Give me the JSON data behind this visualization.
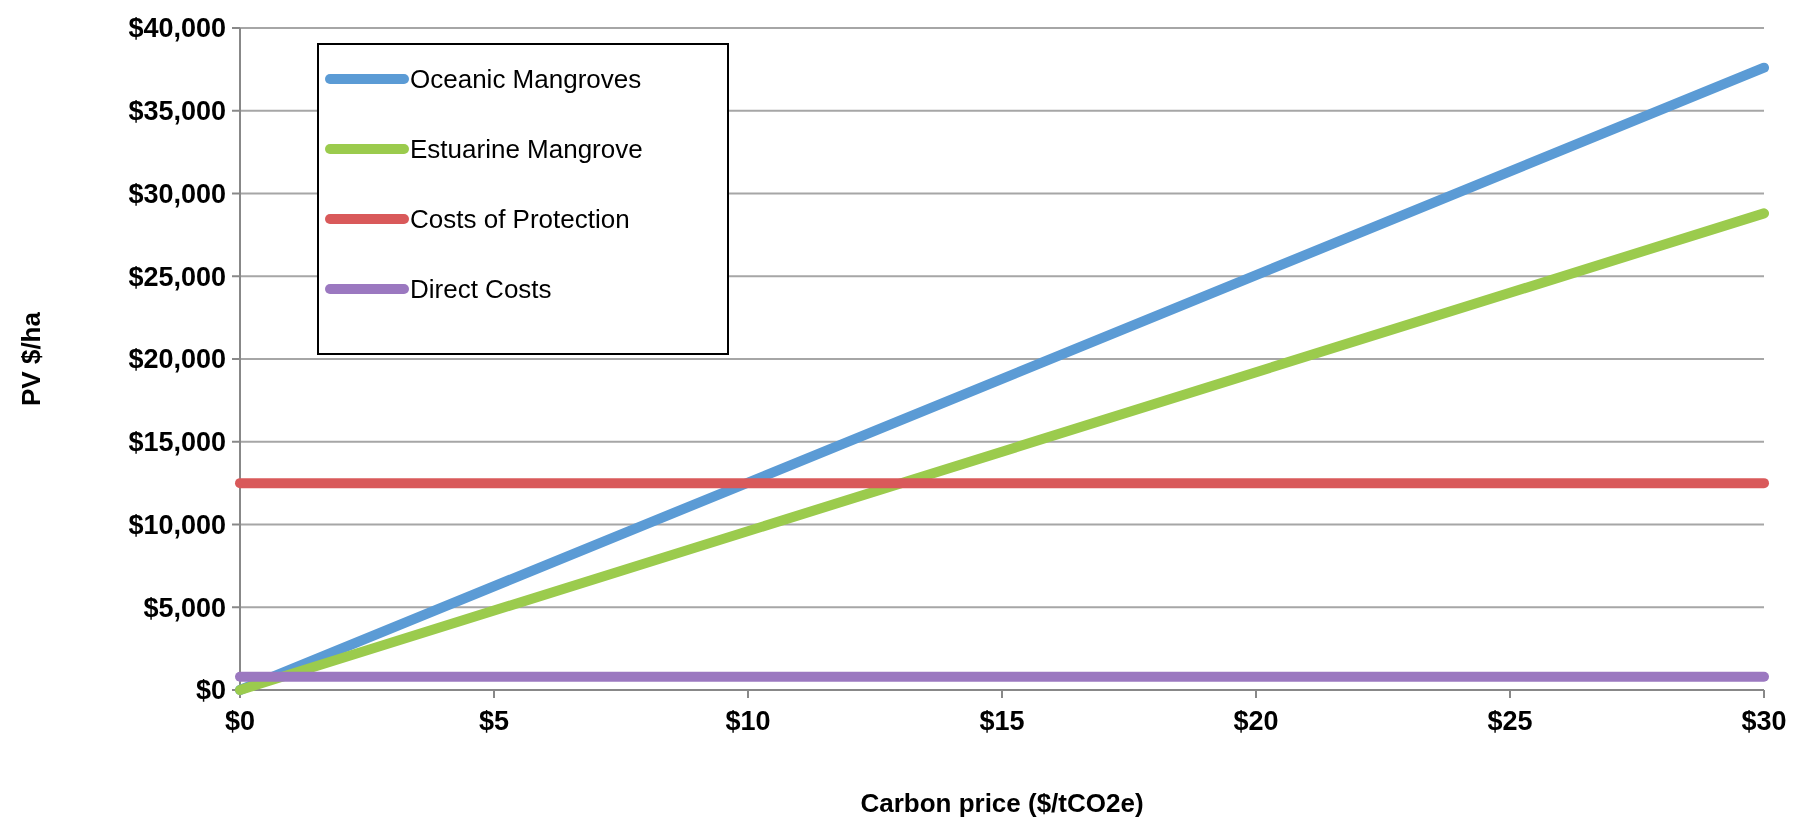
{
  "chart_data": {
    "type": "line",
    "xlabel": "Carbon price ($/tCO2e)",
    "ylabel": "PV $/ha",
    "x": [
      0,
      30
    ],
    "series": [
      {
        "name": "Oceanic Mangroves",
        "color": "#5b9bd5",
        "values": [
          0,
          37600
        ]
      },
      {
        "name": "Estuarine Mangrove",
        "color": "#9bcb4d",
        "values": [
          0,
          28800
        ]
      },
      {
        "name": "Costs of Protection",
        "color": "#d9595a",
        "values": [
          12500,
          12500
        ]
      },
      {
        "name": "Direct Costs",
        "color": "#9b78c0",
        "values": [
          800,
          800
        ]
      }
    ],
    "xlim": [
      0,
      30
    ],
    "xticks": [
      {
        "value": 0,
        "label": "$0"
      },
      {
        "value": 5,
        "label": "$5"
      },
      {
        "value": 10,
        "label": "$10"
      },
      {
        "value": 15,
        "label": "$15"
      },
      {
        "value": 20,
        "label": "$20"
      },
      {
        "value": 25,
        "label": "$25"
      },
      {
        "value": 30,
        "label": "$30"
      }
    ],
    "ylim": [
      0,
      40000
    ],
    "yticks": [
      {
        "value": 0,
        "label": "$0"
      },
      {
        "value": 5000,
        "label": "$5,000"
      },
      {
        "value": 10000,
        "label": "$10,000"
      },
      {
        "value": 15000,
        "label": "$15,000"
      },
      {
        "value": 20000,
        "label": "$20,000"
      },
      {
        "value": 25000,
        "label": "$25,000"
      },
      {
        "value": 30000,
        "label": "$30,000"
      },
      {
        "value": 35000,
        "label": "$35,000"
      },
      {
        "value": 40000,
        "label": "$40,000"
      }
    ],
    "grid": "y",
    "legend": "top left",
    "marker": "none",
    "line_style": "solid"
  }
}
